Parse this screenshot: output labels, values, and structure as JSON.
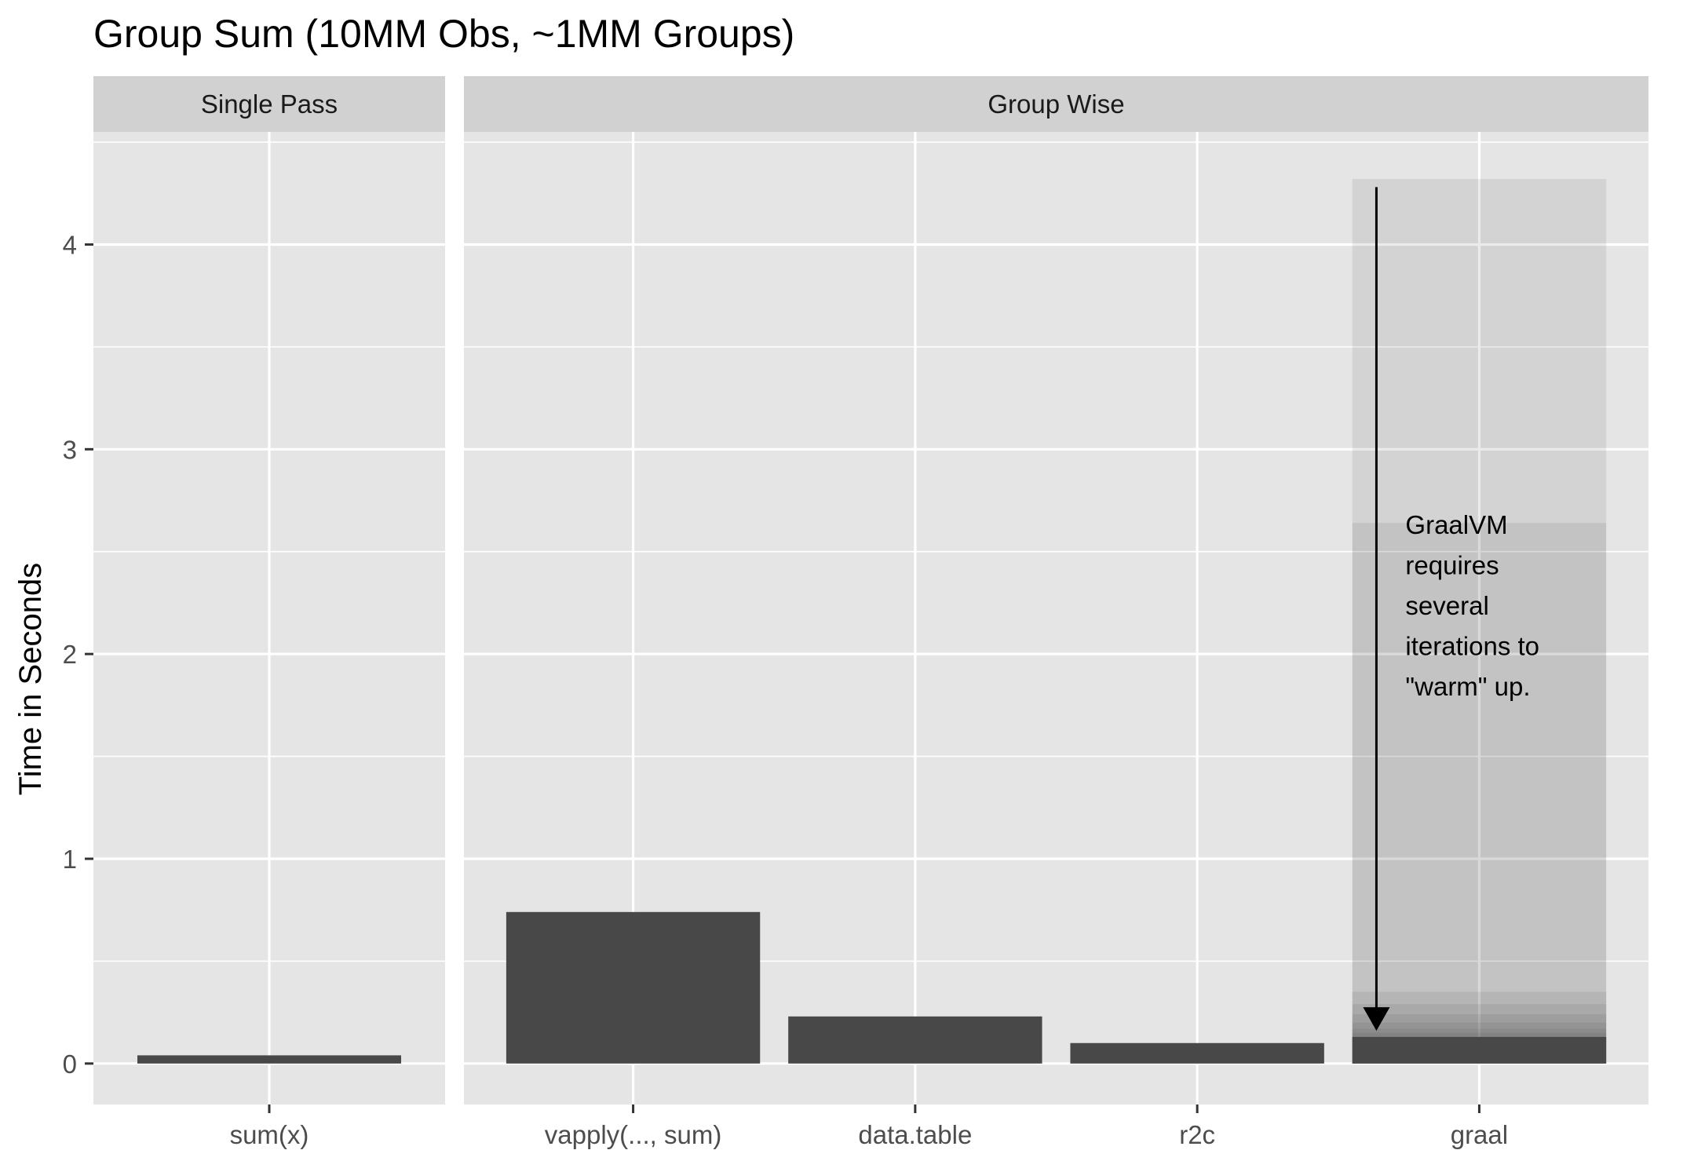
{
  "chart_data": {
    "type": "bar",
    "title": "Group Sum (10MM Obs, ~1MM Groups)",
    "xlabel": "",
    "ylabel": "Time in Seconds",
    "ylim": [
      -0.2,
      4.55
    ],
    "yticks": [
      0,
      1,
      2,
      3,
      4
    ],
    "grid": true,
    "legend": "none",
    "panels": [
      {
        "name": "Single Pass",
        "categories": [
          "sum(x)"
        ],
        "values": [
          0.04
        ]
      },
      {
        "name": "Group Wise",
        "categories": [
          "vapply(..., sum)",
          "data.table",
          "r2c",
          "graal"
        ],
        "values": [
          0.74,
          0.23,
          0.1,
          0.13
        ]
      }
    ],
    "graal_iterations": [
      4.32,
      2.64,
      0.35,
      0.29,
      0.24,
      0.2,
      0.17,
      0.15,
      0.13
    ],
    "annotation": {
      "lines": [
        "GraalVM",
        "requires",
        "several",
        "iterations to",
        "\"warm\" up."
      ],
      "arrow_from": 4.28,
      "arrow_to": 0.16,
      "category": "graal"
    },
    "colors": {
      "bar": "#484848",
      "panel_bg": "#e5e5e5",
      "strip_bg": "#d1d1d1",
      "grid": "#ffffff",
      "graal_overlay": "#484848"
    }
  }
}
